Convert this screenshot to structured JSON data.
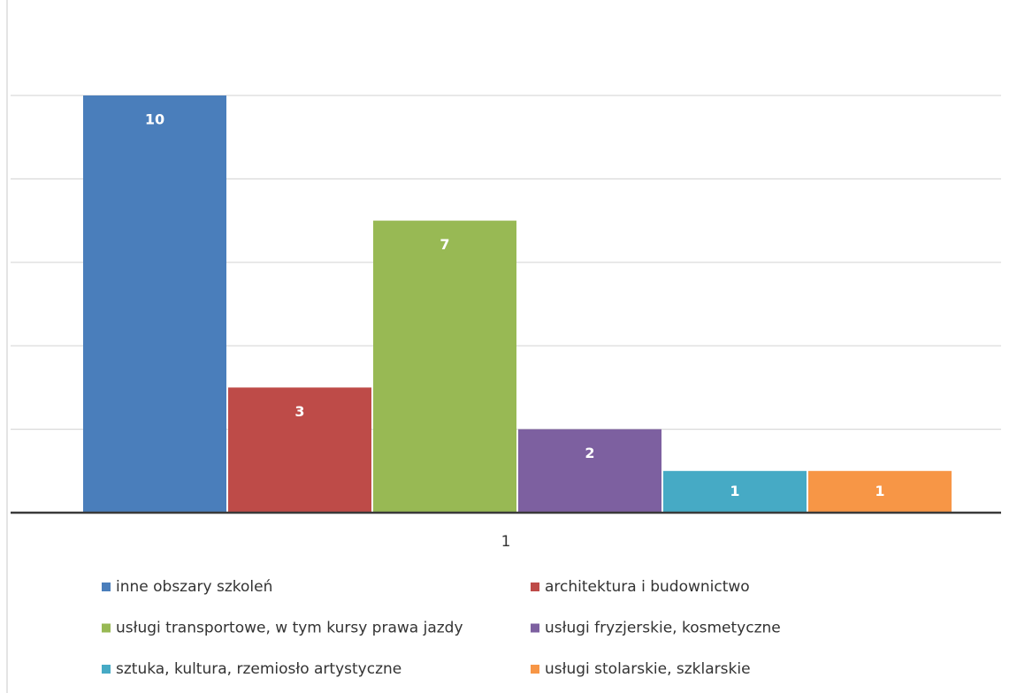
{
  "chart_data": {
    "type": "bar",
    "categories": [
      "1"
    ],
    "series": [
      {
        "name": "inne obszary szkoleń",
        "color": "#4a7ebb",
        "values": [
          10
        ]
      },
      {
        "name": "architektura i budownictwo",
        "color": "#be4b48",
        "values": [
          3
        ]
      },
      {
        "name": "usługi transportowe, w tym kursy prawa jazdy",
        "color": "#98b954",
        "values": [
          7
        ]
      },
      {
        "name": "usługi fryzjerskie, kosmetyczne",
        "color": "#7d60a0",
        "values": [
          2
        ]
      },
      {
        "name": "sztuka, kultura, rzemiosło artystyczne",
        "color": "#46aac5",
        "values": [
          1
        ]
      },
      {
        "name": "usługi stolarskie, szklarskie",
        "color": "#f79646",
        "values": [
          1
        ]
      }
    ],
    "ylim": [
      0,
      10
    ],
    "yticks": [
      0,
      2,
      4,
      6,
      8,
      10
    ],
    "grid": true,
    "legend": "bottom"
  }
}
